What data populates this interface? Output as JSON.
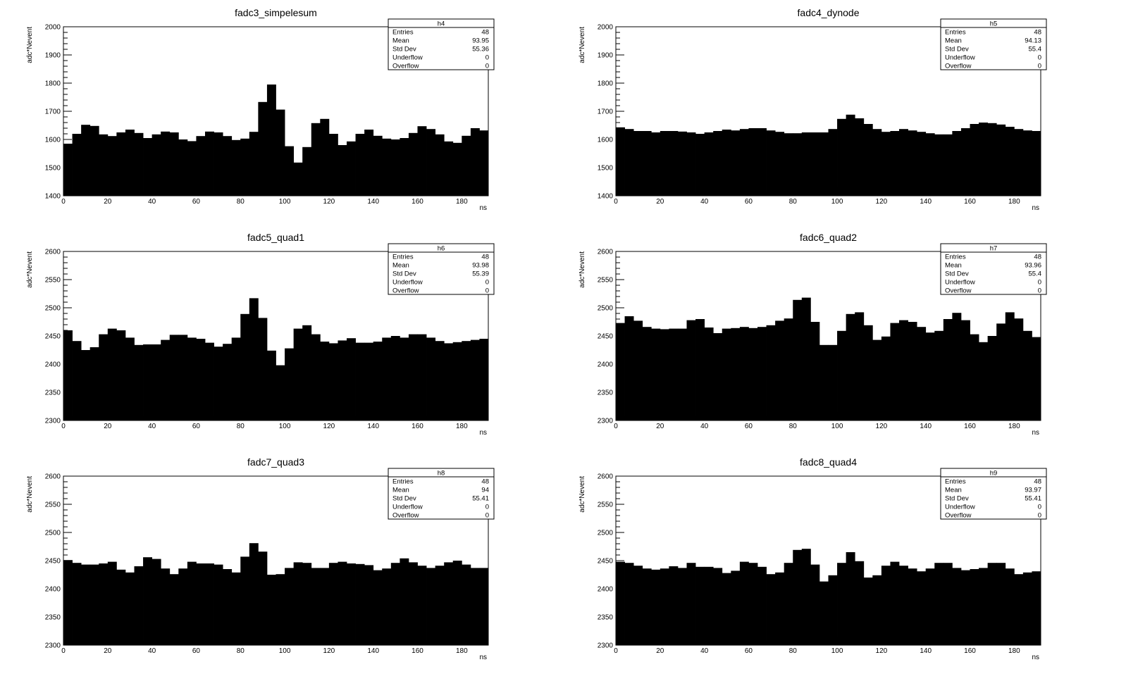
{
  "chart_data": [
    {
      "type": "bar",
      "title": "fadc3_simpelesum",
      "xlabel": "ns",
      "ylabel": "adc*Nevent",
      "xlim": [
        0,
        192
      ],
      "ylim": [
        1400,
        2000
      ],
      "xticks": [
        0,
        20,
        40,
        60,
        80,
        100,
        120,
        140,
        160,
        180
      ],
      "yticks": [
        1400,
        1500,
        1600,
        1700,
        1800,
        1900,
        2000
      ],
      "bin_width": 4,
      "values": [
        1585,
        1620,
        1652,
        1648,
        1618,
        1612,
        1625,
        1635,
        1623,
        1605,
        1618,
        1628,
        1625,
        1600,
        1594,
        1612,
        1628,
        1625,
        1612,
        1598,
        1603,
        1627,
        1733,
        1795,
        1706,
        1576,
        1518,
        1573,
        1658,
        1673,
        1620,
        1580,
        1593,
        1620,
        1635,
        1613,
        1603,
        1600,
        1605,
        1623,
        1647,
        1637,
        1618,
        1593,
        1588,
        1613,
        1640,
        1632
      ],
      "stats": {
        "name": "h4",
        "rows": [
          {
            "label": "Entries",
            "value": "48"
          },
          {
            "label": "Mean",
            "value": "93.95"
          },
          {
            "label": "Std Dev",
            "value": "55.36"
          },
          {
            "label": "Underflow",
            "value": "0"
          },
          {
            "label": "Overflow",
            "value": "0"
          }
        ]
      }
    },
    {
      "type": "bar",
      "title": "fadc4_dynode",
      "xlabel": "ns",
      "ylabel": "adc*Nevent",
      "xlim": [
        0,
        192
      ],
      "ylim": [
        1400,
        2000
      ],
      "xticks": [
        0,
        20,
        40,
        60,
        80,
        100,
        120,
        140,
        160,
        180
      ],
      "yticks": [
        1400,
        1500,
        1600,
        1700,
        1800,
        1900,
        2000
      ],
      "bin_width": 4,
      "values": [
        1643,
        1637,
        1630,
        1630,
        1625,
        1630,
        1630,
        1628,
        1625,
        1620,
        1625,
        1630,
        1635,
        1632,
        1637,
        1640,
        1640,
        1632,
        1627,
        1622,
        1622,
        1625,
        1625,
        1625,
        1637,
        1673,
        1688,
        1675,
        1655,
        1637,
        1627,
        1630,
        1637,
        1632,
        1627,
        1622,
        1618,
        1618,
        1630,
        1640,
        1655,
        1660,
        1658,
        1653,
        1645,
        1637,
        1632,
        1630
      ],
      "stats": {
        "name": "h5",
        "rows": [
          {
            "label": "Entries",
            "value": "48"
          },
          {
            "label": "Mean",
            "value": "94.13"
          },
          {
            "label": "Std Dev",
            "value": "55.4"
          },
          {
            "label": "Underflow",
            "value": "0"
          },
          {
            "label": "Overflow",
            "value": "0"
          }
        ]
      }
    },
    {
      "type": "bar",
      "title": "fadc5_quad1",
      "xlabel": "ns",
      "ylabel": "adc*Nevent",
      "xlim": [
        0,
        192
      ],
      "ylim": [
        2300,
        2600
      ],
      "xticks": [
        0,
        20,
        40,
        60,
        80,
        100,
        120,
        140,
        160,
        180
      ],
      "yticks": [
        2300,
        2350,
        2400,
        2450,
        2500,
        2550,
        2600
      ],
      "bin_width": 4,
      "values": [
        2460,
        2441,
        2425,
        2430,
        2453,
        2463,
        2460,
        2447,
        2434,
        2435,
        2435,
        2443,
        2452,
        2452,
        2447,
        2445,
        2438,
        2431,
        2436,
        2447,
        2489,
        2517,
        2482,
        2424,
        2398,
        2428,
        2463,
        2469,
        2453,
        2440,
        2437,
        2442,
        2446,
        2438,
        2438,
        2440,
        2447,
        2450,
        2447,
        2453,
        2453,
        2447,
        2441,
        2437,
        2439,
        2441,
        2443,
        2445
      ],
      "stats": {
        "name": "h6",
        "rows": [
          {
            "label": "Entries",
            "value": "48"
          },
          {
            "label": "Mean",
            "value": "93.98"
          },
          {
            "label": "Std Dev",
            "value": "55.39"
          },
          {
            "label": "Underflow",
            "value": "0"
          },
          {
            "label": "Overflow",
            "value": "0"
          }
        ]
      }
    },
    {
      "type": "bar",
      "title": "fadc6_quad2",
      "xlabel": "ns",
      "ylabel": "adc*Nevent",
      "xlim": [
        0,
        192
      ],
      "ylim": [
        2300,
        2600
      ],
      "xticks": [
        0,
        20,
        40,
        60,
        80,
        100,
        120,
        140,
        160,
        180
      ],
      "yticks": [
        2300,
        2350,
        2400,
        2450,
        2500,
        2550,
        2600
      ],
      "bin_width": 4,
      "values": [
        2473,
        2485,
        2477,
        2466,
        2463,
        2462,
        2463,
        2463,
        2478,
        2480,
        2465,
        2455,
        2463,
        2464,
        2466,
        2464,
        2466,
        2469,
        2477,
        2481,
        2514,
        2518,
        2475,
        2434,
        2434,
        2459,
        2489,
        2492,
        2469,
        2443,
        2449,
        2473,
        2478,
        2475,
        2466,
        2456,
        2459,
        2480,
        2491,
        2478,
        2453,
        2439,
        2450,
        2472,
        2492,
        2481,
        2459,
        2448
      ],
      "stats": {
        "name": "h7",
        "rows": [
          {
            "label": "Entries",
            "value": "48"
          },
          {
            "label": "Mean",
            "value": "93.96"
          },
          {
            "label": "Std Dev",
            "value": "55.4"
          },
          {
            "label": "Underflow",
            "value": "0"
          },
          {
            "label": "Overflow",
            "value": "0"
          }
        ]
      }
    },
    {
      "type": "bar",
      "title": "fadc7_quad3",
      "xlabel": "ns",
      "ylabel": "adc*Nevent",
      "xlim": [
        0,
        192
      ],
      "ylim": [
        2300,
        2600
      ],
      "xticks": [
        0,
        20,
        40,
        60,
        80,
        100,
        120,
        140,
        160,
        180
      ],
      "yticks": [
        2300,
        2350,
        2400,
        2450,
        2500,
        2550,
        2600
      ],
      "bin_width": 4,
      "values": [
        2451,
        2446,
        2443,
        2443,
        2445,
        2448,
        2434,
        2429,
        2440,
        2456,
        2453,
        2436,
        2426,
        2436,
        2448,
        2445,
        2445,
        2443,
        2435,
        2429,
        2457,
        2481,
        2466,
        2425,
        2426,
        2437,
        2447,
        2446,
        2437,
        2437,
        2446,
        2448,
        2445,
        2444,
        2442,
        2433,
        2436,
        2446,
        2454,
        2447,
        2441,
        2437,
        2441,
        2447,
        2450,
        2443,
        2437,
        2437
      ],
      "stats": {
        "name": "h8",
        "rows": [
          {
            "label": "Entries",
            "value": "48"
          },
          {
            "label": "Mean",
            "value": "94"
          },
          {
            "label": "Std Dev",
            "value": "55.41"
          },
          {
            "label": "Underflow",
            "value": "0"
          },
          {
            "label": "Overflow",
            "value": "0"
          }
        ]
      }
    },
    {
      "type": "bar",
      "title": "fadc8_quad4",
      "xlabel": "ns",
      "ylabel": "adc*Nevent",
      "xlim": [
        0,
        192
      ],
      "ylim": [
        2300,
        2600
      ],
      "xticks": [
        0,
        20,
        40,
        60,
        80,
        100,
        120,
        140,
        160,
        180
      ],
      "yticks": [
        2300,
        2350,
        2400,
        2450,
        2500,
        2550,
        2600
      ],
      "bin_width": 4,
      "values": [
        2448,
        2446,
        2441,
        2436,
        2434,
        2436,
        2440,
        2437,
        2446,
        2439,
        2439,
        2437,
        2428,
        2432,
        2448,
        2446,
        2439,
        2426,
        2429,
        2446,
        2469,
        2471,
        2443,
        2413,
        2424,
        2446,
        2465,
        2449,
        2420,
        2424,
        2441,
        2448,
        2441,
        2436,
        2431,
        2436,
        2446,
        2446,
        2437,
        2433,
        2435,
        2437,
        2446,
        2446,
        2436,
        2426,
        2429,
        2431
      ],
      "stats": {
        "name": "h9",
        "rows": [
          {
            "label": "Entries",
            "value": "48"
          },
          {
            "label": "Mean",
            "value": "93.97"
          },
          {
            "label": "Std Dev",
            "value": "55.41"
          },
          {
            "label": "Underflow",
            "value": "0"
          },
          {
            "label": "Overflow",
            "value": "0"
          }
        ]
      }
    }
  ]
}
